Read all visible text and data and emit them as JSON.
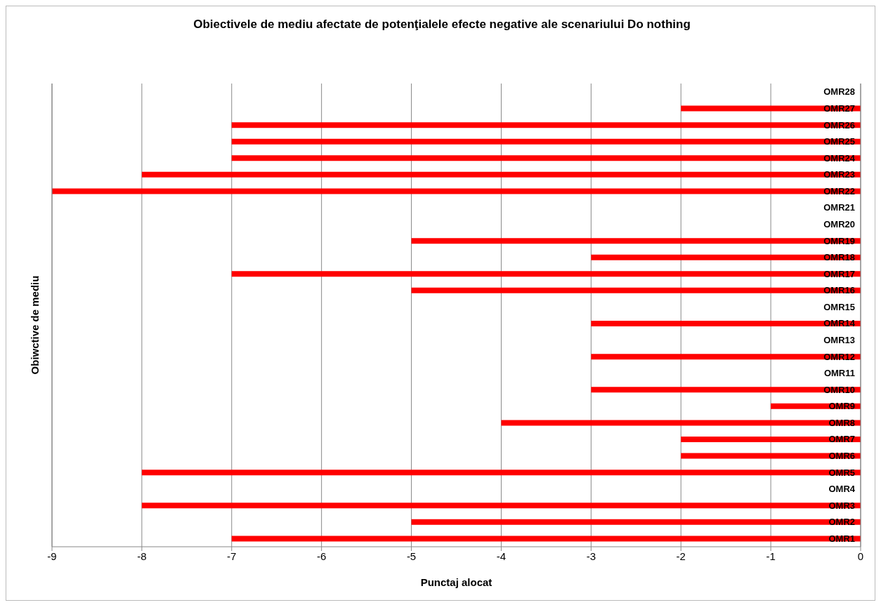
{
  "chart_data": {
    "type": "bar",
    "orientation": "horizontal",
    "title": "Obiectivele de mediu afectate de potenţialele efecte negative ale scenariului Do nothing",
    "xlabel": "Punctaj alocat",
    "ylabel": "Obiwctive de mediu",
    "categories": [
      "OMR28",
      "OMR27",
      "OMR26",
      "OMR25",
      "OMR24",
      "OMR23",
      "OMR22",
      "OMR21",
      "OMR20",
      "OMR19",
      "OMR18",
      "OMR17",
      "OMR16",
      "OMR15",
      "OMR14",
      "OMR13",
      "OMR12",
      "OMR11",
      "OMR10",
      "OMR9",
      "OMR8",
      "OMR7",
      "OMR6",
      "OMR5",
      "OMR4",
      "OMR3",
      "OMR2",
      "OMR1"
    ],
    "values": [
      0,
      -2,
      -7,
      -7,
      -7,
      -8,
      -9,
      0,
      0,
      -5,
      -3,
      -7,
      -5,
      0,
      -3,
      0,
      -3,
      0,
      -3,
      -1,
      -4,
      -2,
      -2,
      -8,
      0,
      -8,
      -5,
      -7
    ],
    "color": "#ff0000",
    "xlim": [
      -9,
      0
    ],
    "xticks": [
      -9,
      -8,
      -7,
      -6,
      -5,
      -4,
      -3,
      -2,
      -1,
      0
    ],
    "grid": "x",
    "legend": false
  }
}
